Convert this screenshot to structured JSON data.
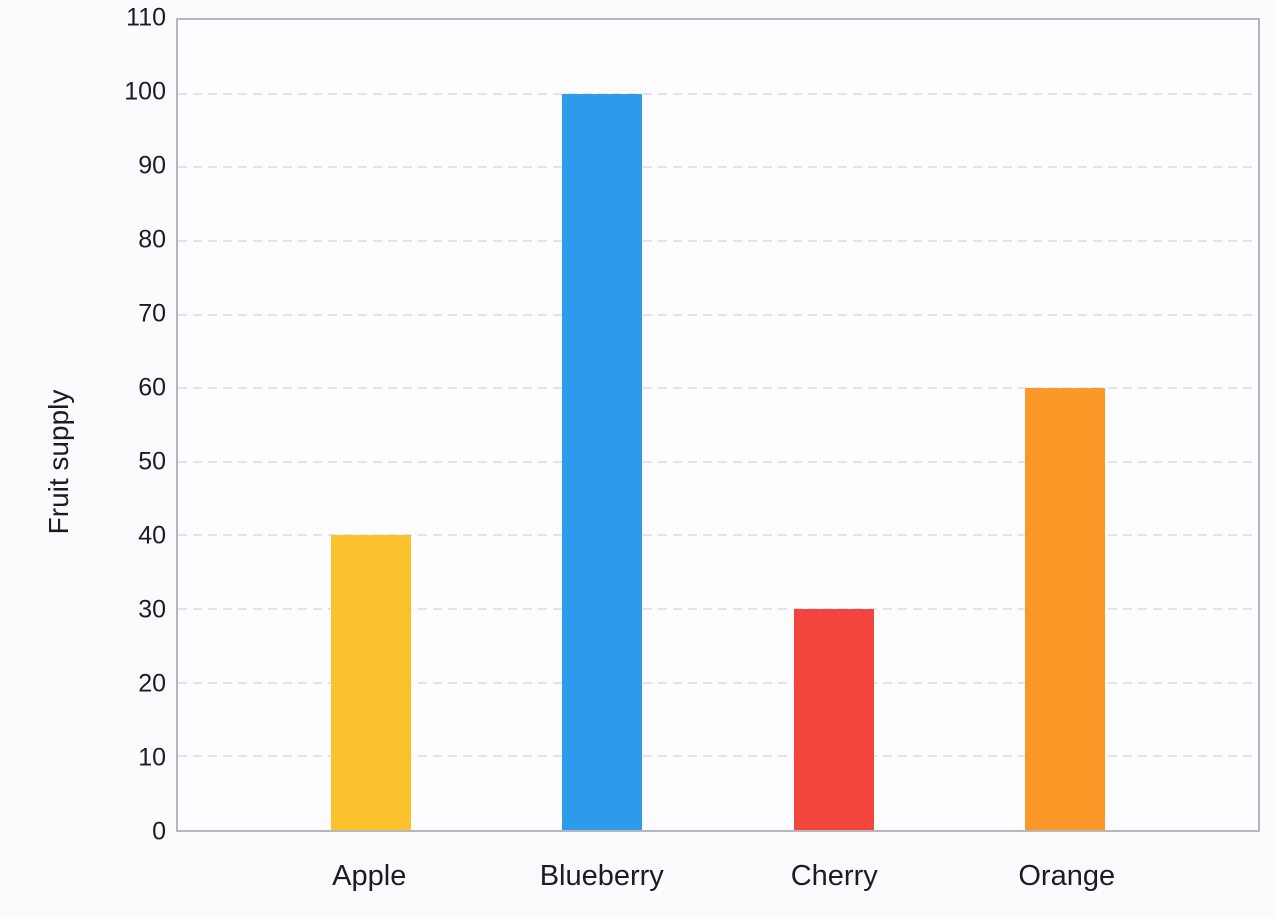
{
  "chart_data": {
    "type": "bar",
    "categories": [
      "Apple",
      "Blueberry",
      "Cherry",
      "Orange"
    ],
    "values": [
      40,
      100,
      30,
      60
    ],
    "bar_colors": [
      "#fcc22e",
      "#2d9aea",
      "#f1453e",
      "#fa9828"
    ],
    "title": "",
    "xlabel": "",
    "ylabel": "Fruit supply",
    "ylim": [
      0,
      110
    ],
    "yticks": [
      0,
      10,
      20,
      30,
      40,
      50,
      60,
      70,
      80,
      90,
      100,
      110
    ],
    "grid": "horizontal-dashed",
    "legend": "none",
    "colors": {
      "page_background": "#fbfbfe",
      "plot_background": "#fdfdff",
      "axis_border": "#b7b7bb",
      "gridline": "#e4e4e8",
      "text": "#1b1d21"
    }
  }
}
